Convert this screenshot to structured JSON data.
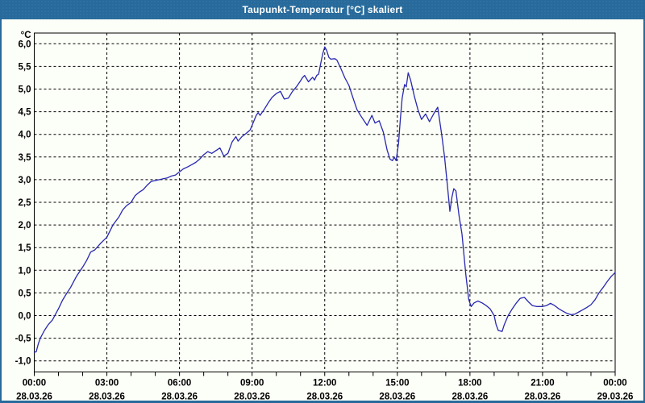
{
  "window": {
    "title": "Taupunkt-Temperatur [°C] skaliert",
    "titlebar_color": "#276a9b",
    "titlebar_text_color": "#ffffff",
    "background_color": "#fcfef8"
  },
  "chart_data": {
    "type": "line",
    "title": "Taupunkt-Temperatur [°C] skaliert",
    "ylabel": "°C",
    "unit_label": "°C",
    "line_color": "#2828b0",
    "grid": "dashed-black",
    "legend": "none",
    "y_axis": {
      "min": -1.0,
      "max": 6.0,
      "step": 0.5,
      "decimal_separator": ",",
      "tick_labels": [
        "6,0",
        "5,5",
        "5,0",
        "4,5",
        "4,0",
        "3,5",
        "3,0",
        "2,5",
        "2,0",
        "1,5",
        "1,0",
        "0,5",
        "0,0",
        "-0,5",
        "-1,0"
      ]
    },
    "x_axis": {
      "span_hours": 24,
      "minor_tick_hours": 1,
      "major_tick_hours": 3,
      "major_labels": [
        {
          "hour": 0,
          "time": "00:00",
          "date": "28.03.26"
        },
        {
          "hour": 3,
          "time": "03:00",
          "date": "28.03.26"
        },
        {
          "hour": 6,
          "time": "06:00",
          "date": "28.03.26"
        },
        {
          "hour": 9,
          "time": "09:00",
          "date": "28.03.26"
        },
        {
          "hour": 12,
          "time": "12:00",
          "date": "28.03.26"
        },
        {
          "hour": 15,
          "time": "15:00",
          "date": "28.03.26"
        },
        {
          "hour": 18,
          "time": "18:00",
          "date": "28.03.26"
        },
        {
          "hour": 21,
          "time": "21:00",
          "date": "28.03.26"
        },
        {
          "hour": 24,
          "time": "00:00",
          "date": "29.03.26"
        }
      ]
    },
    "x_hours": [
      0,
      0.08,
      0.17,
      0.25,
      0.42,
      0.58,
      0.75,
      1.0,
      1.17,
      1.33,
      1.5,
      1.75,
      2.0,
      2.17,
      2.33,
      2.5,
      2.75,
      3.0,
      3.25,
      3.5,
      3.65,
      3.8,
      4.0,
      4.17,
      4.33,
      4.5,
      4.67,
      4.83,
      5.0,
      5.17,
      5.33,
      5.5,
      5.67,
      5.83,
      6.0,
      6.17,
      6.33,
      6.5,
      6.67,
      6.83,
      7.0,
      7.17,
      7.33,
      7.5,
      7.67,
      7.83,
      8.0,
      8.17,
      8.33,
      8.42,
      8.58,
      8.75,
      8.92,
      9.0,
      9.17,
      9.25,
      9.33,
      9.5,
      9.67,
      9.83,
      10.0,
      10.17,
      10.33,
      10.5,
      10.67,
      10.83,
      11.0,
      11.08,
      11.17,
      11.33,
      11.5,
      11.58,
      11.67,
      11.75,
      11.83,
      11.92,
      12.0,
      12.08,
      12.17,
      12.25,
      12.42,
      12.5,
      12.67,
      12.83,
      13.0,
      13.17,
      13.33,
      13.5,
      13.75,
      13.95,
      14.08,
      14.25,
      14.42,
      14.58,
      14.7,
      14.8,
      14.87,
      14.95,
      15.05,
      15.12,
      15.2,
      15.3,
      15.37,
      15.45,
      15.55,
      15.7,
      15.85,
      16.0,
      16.17,
      16.33,
      16.5,
      16.67,
      16.83,
      16.95,
      17.08,
      17.17,
      17.25,
      17.33,
      17.42,
      17.55,
      17.67,
      17.83,
      17.95,
      18.05,
      18.17,
      18.33,
      18.5,
      18.67,
      18.83,
      19.0,
      19.08,
      19.17,
      19.33,
      19.42,
      19.58,
      19.75,
      19.92,
      20.08,
      20.25,
      20.42,
      20.58,
      20.75,
      21.0,
      21.17,
      21.33,
      21.5,
      21.67,
      21.83,
      22.0,
      22.17,
      22.33,
      22.5,
      22.67,
      22.83,
      23.0,
      23.17,
      23.33,
      23.5,
      23.67,
      23.83,
      24.0
    ],
    "values": [
      -0.81,
      -0.8,
      -0.62,
      -0.5,
      -0.33,
      -0.2,
      -0.1,
      0.15,
      0.34,
      0.48,
      0.62,
      0.87,
      1.07,
      1.22,
      1.4,
      1.45,
      1.6,
      1.73,
      2.0,
      2.18,
      2.33,
      2.42,
      2.5,
      2.65,
      2.72,
      2.78,
      2.88,
      2.96,
      2.98,
      3.0,
      3.02,
      3.04,
      3.08,
      3.1,
      3.17,
      3.24,
      3.28,
      3.33,
      3.38,
      3.45,
      3.55,
      3.62,
      3.58,
      3.64,
      3.7,
      3.52,
      3.58,
      3.83,
      3.95,
      3.85,
      3.95,
      4.02,
      4.1,
      4.2,
      4.42,
      4.48,
      4.42,
      4.55,
      4.7,
      4.82,
      4.9,
      4.95,
      4.78,
      4.8,
      4.95,
      5.05,
      5.18,
      5.25,
      5.3,
      5.16,
      5.26,
      5.2,
      5.3,
      5.33,
      5.55,
      5.78,
      5.93,
      5.85,
      5.7,
      5.66,
      5.67,
      5.64,
      5.45,
      5.25,
      5.08,
      4.8,
      4.55,
      4.4,
      4.2,
      4.42,
      4.25,
      4.3,
      4.05,
      3.65,
      3.45,
      3.42,
      3.5,
      3.42,
      3.8,
      4.3,
      4.8,
      5.1,
      5.05,
      5.36,
      5.2,
      4.85,
      4.55,
      4.33,
      4.45,
      4.28,
      4.45,
      4.6,
      4.0,
      3.5,
      2.8,
      2.3,
      2.6,
      2.8,
      2.75,
      2.2,
      1.8,
      0.9,
      0.35,
      0.2,
      0.28,
      0.32,
      0.28,
      0.22,
      0.15,
      0.0,
      -0.2,
      -0.33,
      -0.35,
      -0.2,
      0.0,
      0.15,
      0.28,
      0.38,
      0.4,
      0.3,
      0.22,
      0.2,
      0.2,
      0.22,
      0.27,
      0.22,
      0.15,
      0.1,
      0.05,
      0.02,
      0.03,
      0.08,
      0.13,
      0.18,
      0.24,
      0.35,
      0.5,
      0.62,
      0.75,
      0.86,
      0.95
    ]
  }
}
